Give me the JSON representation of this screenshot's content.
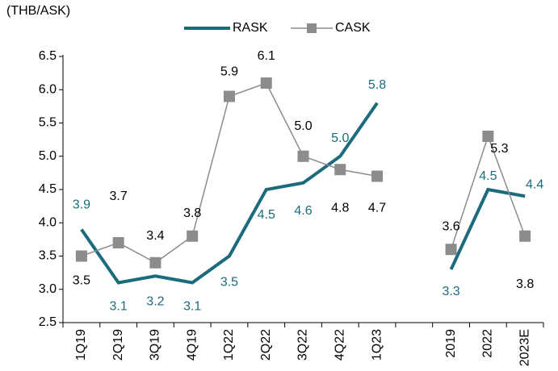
{
  "chart_data": {
    "type": "line",
    "unit_label": "(THB/ASK)",
    "categories": [
      "1Q19",
      "2Q19",
      "3Q19",
      "4Q19",
      "1Q22",
      "2Q22",
      "3Q22",
      "4Q22",
      "1Q23",
      null,
      "2019",
      "2022",
      "2023E"
    ],
    "series": [
      {
        "name": "RASK",
        "color": "#1b6b7d",
        "marker": "none",
        "values": [
          3.9,
          3.1,
          3.2,
          3.1,
          3.5,
          4.5,
          4.6,
          5.0,
          5.8,
          null,
          3.3,
          4.5,
          4.4
        ],
        "value_labels": [
          "3.9",
          "3.1",
          "3.2",
          "3.1",
          "3.5",
          "4.5",
          "4.6",
          "5.0",
          "5.8",
          null,
          "3.3",
          "4.5",
          "4.4"
        ]
      },
      {
        "name": "CASK",
        "color": "#8c8c8c",
        "marker": "square",
        "values": [
          3.5,
          3.7,
          3.4,
          3.8,
          5.9,
          6.1,
          5.0,
          4.8,
          4.7,
          null,
          3.6,
          5.3,
          3.8
        ],
        "value_labels": [
          "3.5",
          "3.7",
          "3.4",
          "3.8",
          "5.9",
          "6.1",
          "5.0",
          "4.8",
          "4.7",
          null,
          "3.6",
          "5.3",
          "3.8"
        ]
      }
    ],
    "ylim": [
      2.5,
      6.5
    ],
    "yticks": [
      2.5,
      {
        "value": 3,
        "label": "3.0"
      },
      3.5,
      {
        "value": 4,
        "label": "4.0"
      },
      4.5,
      {
        "value": 5,
        "label": "5.0"
      },
      5.5,
      {
        "value": 6,
        "label": "6.0"
      },
      6.5
    ],
    "grid": false
  }
}
